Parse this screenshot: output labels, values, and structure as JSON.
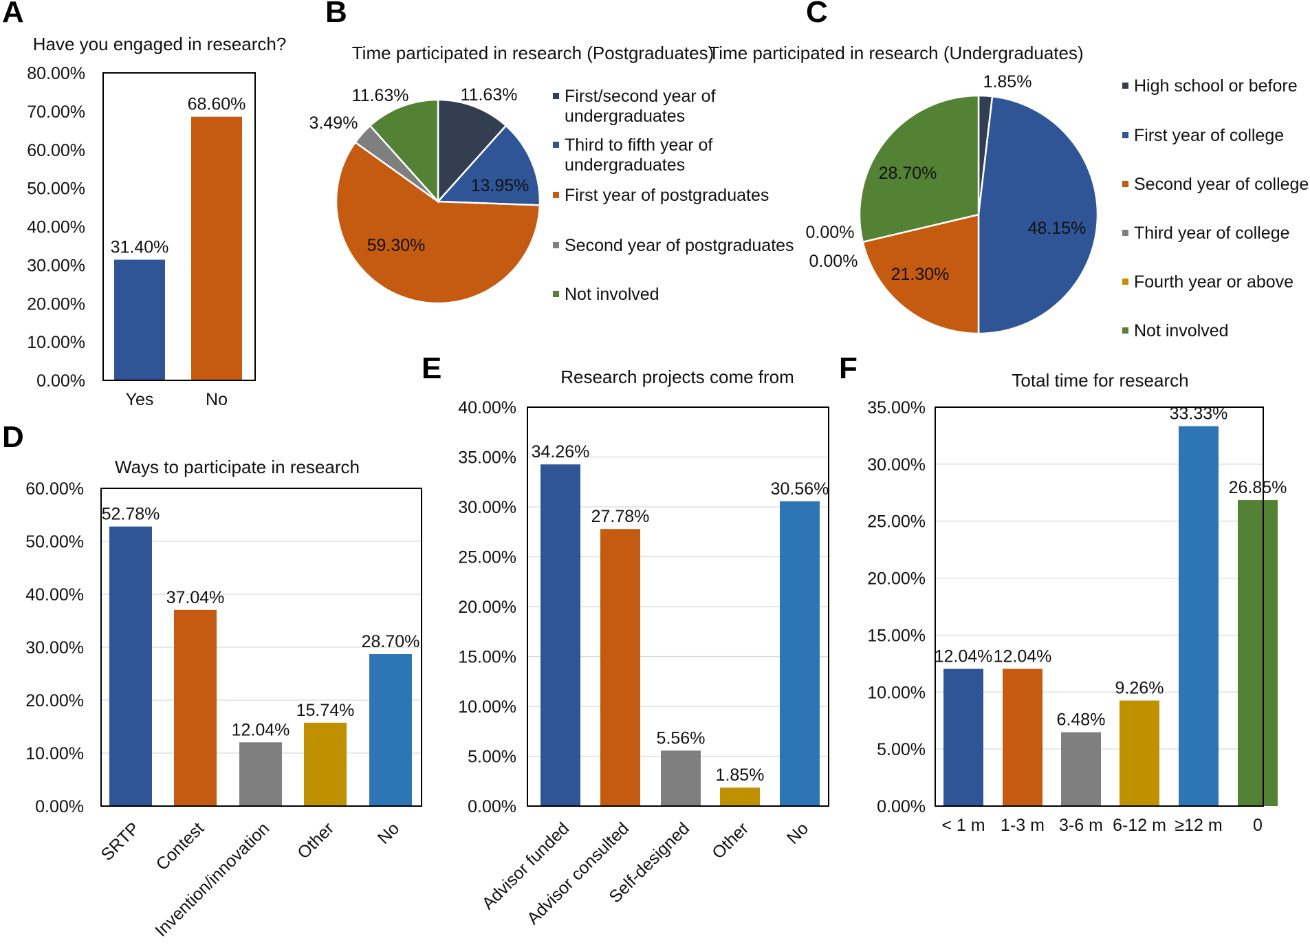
{
  "colors": {
    "dark": "#333f50",
    "blue": "#2f5597",
    "orange": "#c55a11",
    "gray": "#7f7f7f",
    "gold": "#bf9000",
    "lightblue": "#2e75b6",
    "green": "#548235"
  },
  "chart_data": [
    {
      "id": "A",
      "panel_label": "A",
      "type": "bar",
      "title": "Have you engaged in research?",
      "categories": [
        "Yes",
        "No"
      ],
      "values": [
        31.4,
        68.6
      ],
      "value_labels": [
        "31.40%",
        "68.60%"
      ],
      "bar_colors": [
        "blue",
        "orange"
      ],
      "ylim": [
        0,
        80
      ],
      "yticks": [
        "0.00%",
        "10.00%",
        "20.00%",
        "30.00%",
        "40.00%",
        "50.00%",
        "60.00%",
        "70.00%",
        "80.00%"
      ],
      "grid": false
    },
    {
      "id": "B",
      "panel_label": "B",
      "type": "pie",
      "title": "Time participated in research (Postgraduates)",
      "slices": [
        {
          "name": "First/second year of undergraduates",
          "legend_lines": [
            "First/second year of",
            "undergraduates"
          ],
          "value": 11.63,
          "label": "11.63%",
          "color": "dark"
        },
        {
          "name": "Third to fifth year of undergraduates",
          "legend_lines": [
            "Third to fifth year of",
            "undergraduates"
          ],
          "value": 13.95,
          "label": "13.95%",
          "color": "blue"
        },
        {
          "name": "First year of postgraduates",
          "legend_lines": [
            "First year of postgraduates"
          ],
          "value": 59.3,
          "label": "59.30%",
          "color": "orange"
        },
        {
          "name": "Second year of postgraduates",
          "legend_lines": [
            "Second year of postgraduates"
          ],
          "value": 3.49,
          "label": "3.49%",
          "color": "gray"
        },
        {
          "name": "Not involved",
          "legend_lines": [
            "Not involved"
          ],
          "value": 11.63,
          "label": "11.63%",
          "color": "green"
        }
      ]
    },
    {
      "id": "C",
      "panel_label": "C",
      "type": "pie",
      "title": "Time participated in research (Undergraduates)",
      "slices": [
        {
          "name": "High school or before",
          "legend_lines": [
            "High school or before"
          ],
          "value": 1.85,
          "label": "1.85%",
          "color": "dark"
        },
        {
          "name": "First year of college",
          "legend_lines": [
            "First year of college"
          ],
          "value": 48.15,
          "label": "48.15%",
          "color": "blue"
        },
        {
          "name": "Second year of college",
          "legend_lines": [
            "Second year of college"
          ],
          "value": 21.3,
          "label": "21.30%",
          "color": "orange"
        },
        {
          "name": "Third year of college",
          "legend_lines": [
            "Third year of college"
          ],
          "value": 0.0,
          "label": "0.00%",
          "color": "gray"
        },
        {
          "name": "Fourth year or above",
          "legend_lines": [
            "Fourth year or above"
          ],
          "value": 0.0,
          "label": "0.00%",
          "color": "gold"
        },
        {
          "name": "Not involved",
          "legend_lines": [
            "Not involved"
          ],
          "value": 28.7,
          "label": "28.70%",
          "color": "green"
        }
      ]
    },
    {
      "id": "D",
      "panel_label": "D",
      "type": "bar",
      "title": "Ways to participate in research",
      "categories": [
        "SRTP",
        "Contest",
        "Invention/innovation",
        "Other",
        "No"
      ],
      "values": [
        52.78,
        37.04,
        12.04,
        15.74,
        28.7
      ],
      "value_labels": [
        "52.78%",
        "37.04%",
        "12.04%",
        "15.74%",
        "28.70%"
      ],
      "bar_colors": [
        "blue",
        "orange",
        "gray",
        "gold",
        "lightblue"
      ],
      "ylim": [
        0,
        60
      ],
      "yticks": [
        "0.00%",
        "10.00%",
        "20.00%",
        "30.00%",
        "40.00%",
        "50.00%",
        "60.00%"
      ],
      "grid": true
    },
    {
      "id": "E",
      "panel_label": "E",
      "type": "bar",
      "title": "Research projects come from",
      "categories": [
        "Advisor funded",
        "Advisor consulted",
        "Self-designed",
        "Other",
        "No"
      ],
      "values": [
        34.26,
        27.78,
        5.56,
        1.85,
        30.56
      ],
      "value_labels": [
        "34.26%",
        "27.78%",
        "5.56%",
        "1.85%",
        "30.56%"
      ],
      "bar_colors": [
        "blue",
        "orange",
        "gray",
        "gold",
        "lightblue"
      ],
      "ylim": [
        0,
        40
      ],
      "yticks": [
        "0.00%",
        "5.00%",
        "10.00%",
        "15.00%",
        "20.00%",
        "25.00%",
        "30.00%",
        "35.00%",
        "40.00%"
      ],
      "grid": true
    },
    {
      "id": "F",
      "panel_label": "F",
      "type": "bar",
      "title": "Total time for research",
      "categories": [
        "< 1 m",
        "1-3 m",
        "3-6 m",
        "6-12 m",
        "≥12 m",
        "0"
      ],
      "values": [
        12.04,
        12.04,
        6.48,
        9.26,
        33.33,
        26.85
      ],
      "value_labels": [
        "12.04%",
        "12.04%",
        "6.48%",
        "9.26%",
        "33.33%",
        "26.85%"
      ],
      "bar_colors": [
        "blue",
        "orange",
        "gray",
        "gold",
        "lightblue",
        "green"
      ],
      "ylim": [
        0,
        35
      ],
      "yticks": [
        "0.00%",
        "5.00%",
        "10.00%",
        "15.00%",
        "20.00%",
        "25.00%",
        "30.00%",
        "35.00%"
      ],
      "grid": true
    }
  ]
}
